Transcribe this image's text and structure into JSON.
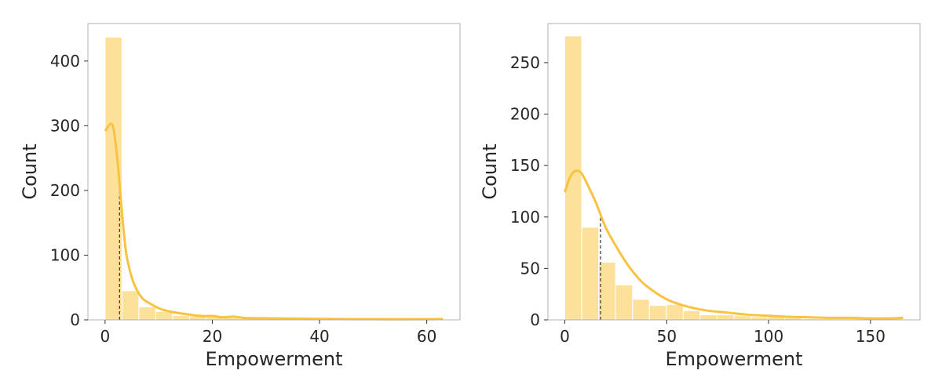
{
  "chart_data": [
    {
      "type": "bar",
      "subtype": "histogram-with-kde",
      "xlabel": "Empowerment",
      "ylabel": "Count",
      "xlim": [
        -3.2,
        66.2
      ],
      "ylim": [
        0,
        458
      ],
      "xticks": [
        0,
        20,
        40,
        60
      ],
      "yticks": [
        0,
        100,
        200,
        300,
        400
      ],
      "bin_edges": [
        0,
        3.15,
        6.3,
        9.45,
        12.6,
        15.75,
        18.9,
        22.05,
        25.2,
        28.35,
        31.5,
        34.65,
        37.8,
        40.95,
        44.1,
        47.25,
        50.4,
        53.55,
        56.7,
        59.85,
        63.0
      ],
      "counts": [
        437,
        45,
        20,
        13,
        7,
        6,
        5,
        3,
        3,
        2,
        2,
        1,
        1,
        1,
        1,
        1,
        0,
        1,
        0,
        1
      ],
      "kde": {
        "x": [
          0,
          0.5,
          1,
          1.5,
          2,
          2.5,
          3,
          3.5,
          4,
          5,
          6,
          7,
          8,
          10,
          12,
          15,
          18,
          20,
          22,
          24,
          26,
          30,
          35,
          40,
          50,
          60,
          63
        ],
        "y": [
          292,
          298,
          303,
          298,
          270,
          230,
          180,
          135,
          100,
          65,
          45,
          33,
          27,
          18,
          13,
          9,
          6,
          6,
          4,
          5,
          3,
          2.5,
          2,
          1.5,
          1,
          1,
          1.5
        ]
      },
      "median_line": 2.7,
      "grid": false,
      "colors": {
        "bar": "#fde09a",
        "kde": "#f8c343",
        "median": "#333333"
      }
    },
    {
      "type": "bar",
      "subtype": "histogram-with-kde",
      "xlabel": "Empowerment",
      "ylabel": "Count",
      "xlim": [
        -8.3,
        174.3
      ],
      "ylim": [
        0,
        288
      ],
      "xticks": [
        0,
        50,
        100,
        150
      ],
      "yticks": [
        0,
        50,
        100,
        150,
        200,
        250
      ],
      "bin_edges": [
        0,
        8.3,
        16.6,
        24.9,
        33.2,
        41.5,
        49.8,
        58.1,
        66.4,
        74.7,
        83.0,
        91.3,
        99.6,
        107.9,
        116.2,
        124.5,
        132.8,
        141.1,
        149.4,
        157.7,
        166.0
      ],
      "counts": [
        276,
        90,
        56,
        34,
        20,
        14,
        15,
        9,
        5,
        5,
        4,
        3,
        3,
        2,
        1,
        1,
        1,
        1,
        1,
        1
      ],
      "kde": {
        "x": [
          0,
          2,
          4,
          6,
          8,
          10,
          15,
          20,
          25,
          30,
          35,
          40,
          50,
          60,
          70,
          80,
          90,
          100,
          110,
          120,
          130,
          140,
          150,
          160,
          166
        ],
        "y": [
          124,
          136,
          143,
          145,
          143,
          136,
          115,
          90,
          72,
          56,
          43,
          33,
          20,
          13,
          9,
          7,
          5,
          4,
          3,
          2.5,
          2,
          2,
          1.5,
          1.5,
          2
        ]
      },
      "median_line": 17.5,
      "grid": false,
      "colors": {
        "bar": "#fde09a",
        "kde": "#f8c343",
        "median": "#333333"
      }
    }
  ]
}
